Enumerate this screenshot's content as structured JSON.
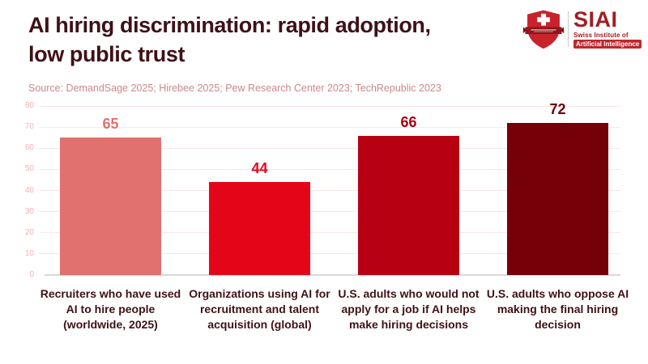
{
  "header": {
    "title_line1": "AI hiring discrimination: rapid adoption,",
    "title_line2": "low public trust",
    "source": "Source: DemandSage 2025; Hirebee 2025; Pew Research Center 2023; TechRepublic 2023"
  },
  "logo": {
    "acronym": "SIAI",
    "subtitle_line1": "Swiss Institute of",
    "subtitle_line2": "Artificial Intelligence"
  },
  "chart_data": {
    "type": "bar",
    "title": "AI hiring discrimination: rapid adoption, low public trust",
    "source": "Source: DemandSage 2025; Hirebee 2025; Pew Research Center 2023; TechRepublic 2023",
    "categories": [
      "Recruiters who have used AI to hire people (worldwide, 2025)",
      "Organizations using AI for recruitment and talent acquisition (global)",
      "U.S. adults who would not apply for a job if AI helps make hiring decisions",
      "U.S. adults who oppose AI making the final hiring decision"
    ],
    "values": [
      65,
      44,
      66,
      72
    ],
    "bar_colors": [
      "#E0716F",
      "#E50519",
      "#B80013",
      "#750008"
    ],
    "value_label_colors": [
      "#E0716F",
      "#E50519",
      "#A80012",
      "#700008"
    ],
    "xlabel": "",
    "ylabel": "",
    "ylim": [
      0,
      80
    ],
    "ytick_interval": 10,
    "grid": true,
    "legend": false,
    "value_labels_shown": true
  },
  "colors": {
    "background": "#FFFFFF",
    "title_text": "#3E1116",
    "category_text": "#3E1116",
    "source_text": "#C9898D",
    "tick_label": "#F3B3B6",
    "gridline": "#FAE6E6",
    "axis_line": "#D8D8D8",
    "logo_red": "#C8232C",
    "logo_dark_red": "#A21D22",
    "logo_banner_red": "#8F161C",
    "logo_badge_red": "#C0272D",
    "divider_gray": "#C9C9C9"
  }
}
